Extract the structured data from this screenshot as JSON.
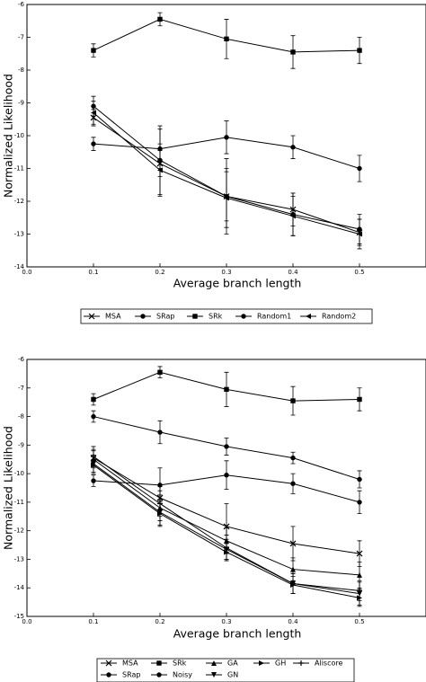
{
  "chart_data": [
    {
      "type": "line",
      "title": "",
      "xlabel": "Average branch length",
      "ylabel": "Normalized Likelihood",
      "xlim": [
        0.0,
        0.6
      ],
      "ylim": [
        -14,
        -6
      ],
      "x_ticks": [
        "0.0",
        "0.1",
        "0.2",
        "0.3",
        "0.4",
        "0.5"
      ],
      "y_ticks": [
        "-14",
        "-13",
        "-12",
        "-11",
        "-10",
        "-9",
        "-8",
        "-7",
        "-6"
      ],
      "x": [
        0.1,
        0.2,
        0.3,
        0.4,
        0.5
      ],
      "grid": false,
      "legend_position": "below",
      "series": [
        {
          "name": "MSA",
          "marker": "x",
          "values": [
            -9.45,
            -10.85,
            -11.85,
            -12.25,
            -12.95
          ],
          "errors": [
            0.25,
            0.4,
            0.75,
            0.5,
            0.4
          ]
        },
        {
          "name": "SRap",
          "marker": "circle",
          "values": [
            -10.25,
            -10.4,
            -10.05,
            -10.35,
            -11.0
          ],
          "errors": [
            0.2,
            0.6,
            0.5,
            0.35,
            0.4
          ]
        },
        {
          "name": "SRk",
          "marker": "square",
          "values": [
            -7.4,
            -6.45,
            -7.05,
            -7.45,
            -7.4
          ],
          "errors": [
            0.2,
            0.2,
            0.6,
            0.5,
            0.4
          ]
        },
        {
          "name": "Random1",
          "marker": "circle",
          "values": [
            -9.1,
            -10.75,
            -11.85,
            -12.4,
            -12.85
          ],
          "errors": [
            0.3,
            1.05,
            1.15,
            0.65,
            0.45
          ]
        },
        {
          "name": "Random2",
          "marker": "triangle-left",
          "values": [
            -9.3,
            -11.05,
            -11.9,
            -12.45,
            -13.0
          ],
          "errors": [
            0.35,
            0.8,
            0.9,
            0.6,
            0.45
          ]
        }
      ]
    },
    {
      "type": "line",
      "title": "",
      "xlabel": "Average branch length",
      "ylabel": "Normalized Likelihood",
      "xlim": [
        0.0,
        0.6
      ],
      "ylim": [
        -15,
        -6
      ],
      "x_ticks": [
        "0.0",
        "0.1",
        "0.2",
        "0.3",
        "0.4",
        "0.5"
      ],
      "y_ticks": [
        "-15",
        "-14",
        "-13",
        "-12",
        "-11",
        "-10",
        "-9",
        "-8",
        "-7",
        "-6"
      ],
      "x": [
        0.1,
        0.2,
        0.3,
        0.4,
        0.5
      ],
      "grid": false,
      "legend_position": "below",
      "series": [
        {
          "name": "MSA",
          "marker": "x",
          "values": [
            -9.45,
            -10.85,
            -11.85,
            -12.45,
            -12.8
          ],
          "errors": [
            0.3,
            0.4,
            0.8,
            0.6,
            0.45
          ]
        },
        {
          "name": "SRap",
          "marker": "circle",
          "values": [
            -10.25,
            -10.4,
            -10.05,
            -10.35,
            -11.0
          ],
          "errors": [
            0.2,
            0.6,
            0.5,
            0.35,
            0.4
          ]
        },
        {
          "name": "SRk",
          "marker": "square",
          "values": [
            -7.4,
            -6.45,
            -7.05,
            -7.45,
            -7.4
          ],
          "errors": [
            0.2,
            0.2,
            0.6,
            0.5,
            0.4
          ]
        },
        {
          "name": "Noisy",
          "marker": "circle",
          "values": [
            -8.0,
            -8.55,
            -9.05,
            -9.45,
            -10.2
          ],
          "errors": [
            0.2,
            0.4,
            0.3,
            0.2,
            0.3
          ]
        },
        {
          "name": "GA",
          "marker": "triangle-up",
          "values": [
            -9.5,
            -11.2,
            -12.35,
            -13.35,
            -13.55
          ],
          "errors": [
            0.3,
            0.45,
            0.45,
            0.4,
            0.45
          ]
        },
        {
          "name": "GN",
          "marker": "triangle-down",
          "values": [
            -9.65,
            -11.35,
            -12.65,
            -13.85,
            -14.2
          ],
          "errors": [
            0.3,
            0.45,
            0.35,
            0.35,
            0.4
          ]
        },
        {
          "name": "GH",
          "marker": "triangle-right",
          "values": [
            -9.7,
            -11.4,
            -12.75,
            -13.9,
            -14.35
          ],
          "errors": [
            0.3,
            0.45,
            0.3,
            0.3,
            0.3
          ]
        },
        {
          "name": "Aliscore",
          "marker": "plus",
          "values": [
            -9.4,
            -11.05,
            -12.6,
            -13.85,
            -14.1
          ],
          "errors": [
            0.35,
            0.45,
            0.45,
            0.35,
            0.35
          ]
        }
      ]
    }
  ]
}
